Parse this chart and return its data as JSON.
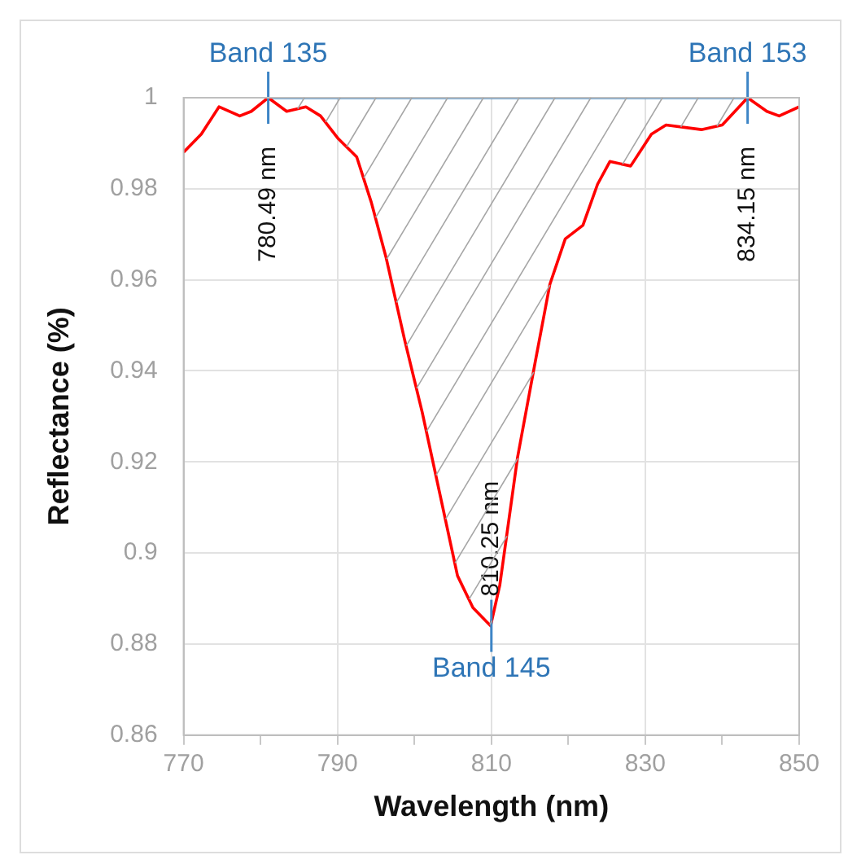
{
  "chart_data": {
    "type": "line",
    "xlabel": "Wavelength (nm)",
    "ylabel": "Reflectance (%)",
    "xlim": [
      770,
      850
    ],
    "xticks": [
      770,
      {
        "value": 780,
        "label": null
      },
      790,
      {
        "value": 800,
        "label": null
      },
      810,
      {
        "value": 820,
        "label": null
      },
      830,
      {
        "value": 840,
        "label": null
      },
      850
    ],
    "ylim": [
      0.86,
      1
    ],
    "yticks": [
      0.86,
      0.88,
      0.9,
      0.92,
      0.94,
      0.96,
      0.98,
      1
    ],
    "grid": true,
    "legend": false,
    "marker": "none",
    "line_style": "solid",
    "series": [
      {
        "color": "#ff0000",
        "x": [
          770,
          772.3,
          774.6,
          777.3,
          778.8,
          781,
          783.4,
          785.9,
          787.8,
          790.1,
          792.5,
          794.4,
          796.3,
          798.7,
          801,
          803.3,
          805.6,
          807.6,
          809.9,
          811.1,
          813.4,
          815.7,
          817.6,
          819.6,
          821.9,
          823.8,
          825.4,
          828.1,
          830.8,
          832.7,
          837.3,
          840,
          843.3,
          845.8,
          847.4,
          850
        ],
        "values": [
          0.988,
          0.992,
          0.998,
          0.996,
          0.997,
          1,
          0.997,
          0.998,
          0.996,
          0.991,
          0.987,
          0.977,
          0.965,
          0.947,
          0.931,
          0.913,
          0.895,
          0.888,
          0.884,
          0.893,
          0.921,
          0.942,
          0.959,
          0.969,
          0.972,
          0.981,
          0.986,
          0.985,
          0.992,
          0.994,
          0.993,
          0.994,
          1,
          0.997,
          0.996,
          0.998
        ]
      },
      {
        "color": "#3d85c6",
        "x": [
          781,
          843.3
        ],
        "values": [
          1,
          1
        ]
      }
    ],
    "annotations": [
      {
        "text": "Band 135",
        "x": 781,
        "y": 1
      },
      {
        "text": "780.49 nm",
        "x": 781,
        "y": 1
      },
      {
        "text": "Band 153",
        "x": 843.3,
        "y": 1
      },
      {
        "text": "834.15 nm",
        "x": 843.3,
        "y": 1
      },
      {
        "text": "Band 145",
        "x": 810,
        "y": 0.884
      },
      {
        "text": "810.25 nm",
        "x": 810,
        "y": 0.884
      }
    ]
  }
}
